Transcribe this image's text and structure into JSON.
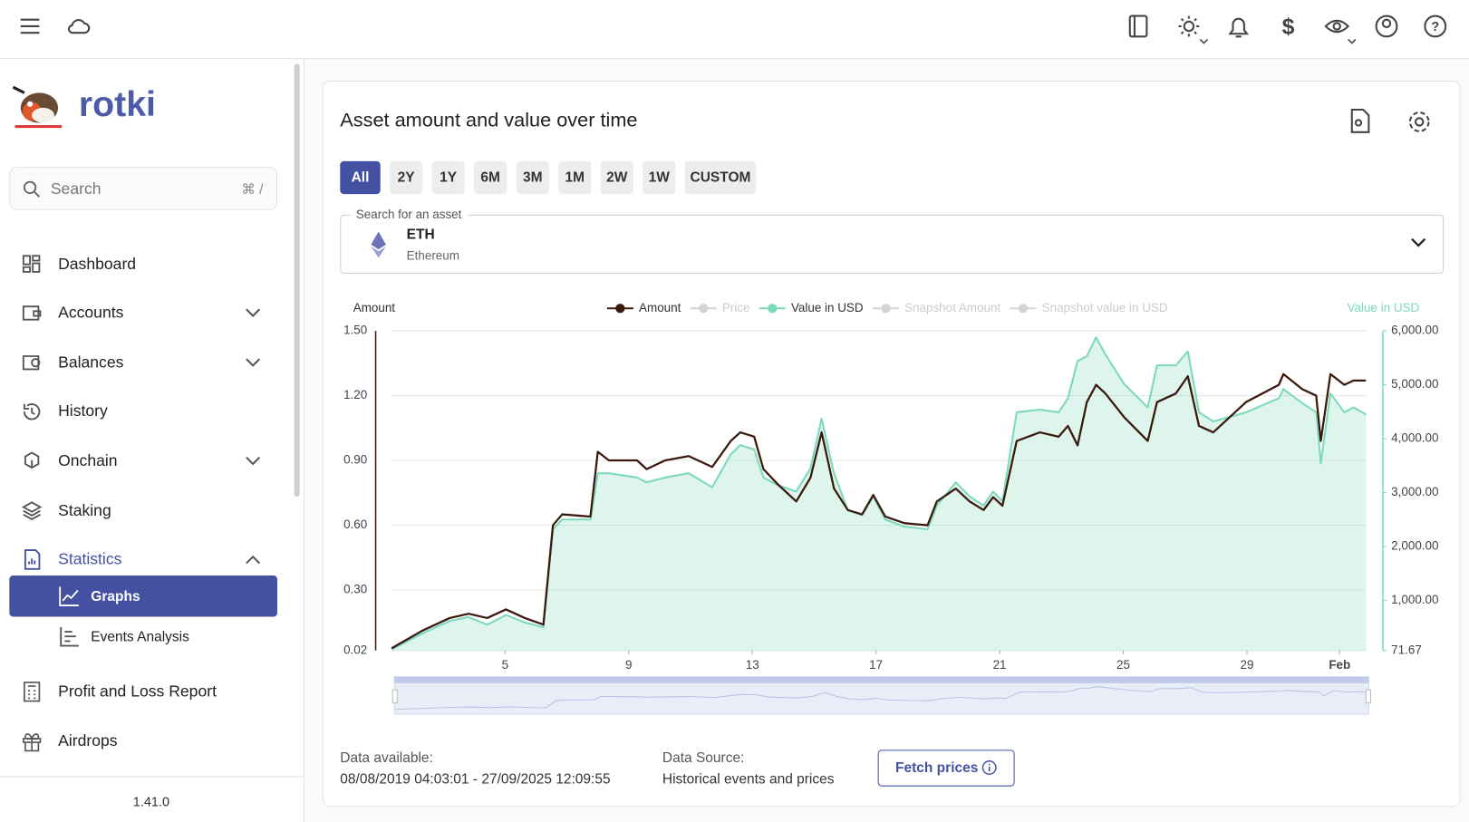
{
  "sidebar": {
    "brand": "rotki",
    "search_placeholder": "Search",
    "search_shortcut": "⌘ /",
    "nav": [
      "Dashboard",
      "Accounts",
      "Balances",
      "History",
      "Onchain",
      "Staking",
      "Statistics"
    ],
    "statistics_children": [
      "Graphs",
      "Events Analysis"
    ],
    "nav_after": [
      "Profit and Loss Report",
      "Airdrops"
    ],
    "version": "1.41.0"
  },
  "card": {
    "title": "Asset amount and value over time",
    "ranges": [
      "All",
      "2Y",
      "1Y",
      "6M",
      "3M",
      "1M",
      "2W",
      "1W",
      "CUSTOM"
    ],
    "asset_field_label": "Search for an asset",
    "asset_symbol": "ETH",
    "asset_name": "Ethereum",
    "data_available_label": "Data available:",
    "data_available": "08/08/2019 04:03:01 - 27/09/2025 12:09:55",
    "data_source_label": "Data Source:",
    "data_source": "Historical events and prices",
    "fetch_button": "Fetch prices"
  },
  "chart_data": {
    "type": "line",
    "ylabel": "Amount",
    "y2label": "Value in USD",
    "x": [
      1.33,
      2.3,
      3.21,
      3.82,
      4.42,
      5.03,
      5.64,
      6.24,
      6.55,
      6.85,
      7.76,
      8.0,
      8.36,
      9.27,
      9.58,
      10.18,
      10.94,
      11.7,
      12.3,
      12.61,
      13.06,
      13.36,
      13.82,
      14.42,
      14.88,
      15.24,
      15.64,
      16.09,
      16.55,
      16.91,
      17.3,
      17.91,
      18.67,
      18.97,
      19.58,
      20.03,
      20.48,
      20.79,
      21.09,
      21.55,
      22.3,
      22.91,
      23.21,
      23.52,
      23.82,
      24.12,
      24.42,
      25.03,
      25.79,
      26.09,
      26.7,
      27.09,
      27.45,
      27.91,
      28.97,
      30.03,
      30.18,
      30.79,
      31.24,
      31.39,
      31.7,
      32.15,
      32.45,
      32.85
    ],
    "xlim": [
      1.33,
      32.85
    ],
    "xticks": [
      5,
      9,
      13,
      17,
      21,
      25,
      29,
      {
        "value": 32,
        "label": "Feb"
      }
    ],
    "ylim": [
      0.02,
      1.5
    ],
    "yticks": [
      0.02,
      {
        "value": 0.3,
        "label": "0.30"
      },
      {
        "value": 0.6,
        "label": "0.60"
      },
      {
        "value": 0.9,
        "label": "0.90"
      },
      {
        "value": 1.2,
        "label": "1.20"
      },
      {
        "value": 1.5,
        "label": "1.50"
      }
    ],
    "y2lim": [
      71.67,
      6000
    ],
    "y2ticks": [
      71.67,
      {
        "value": 1000,
        "label": "1,000.00"
      },
      {
        "value": 2000,
        "label": "2,000.00"
      },
      {
        "value": 3000,
        "label": "3,000.00"
      },
      {
        "value": 4000,
        "label": "4,000.00"
      },
      {
        "value": 5000,
        "label": "5,000.00"
      },
      {
        "value": 6000,
        "label": "6,000.00"
      }
    ],
    "grid": true,
    "series": [
      {
        "name": "Amount",
        "color": "#3b1a0e",
        "values": [
          0.03,
          0.11,
          0.17,
          0.19,
          0.17,
          0.21,
          0.17,
          0.14,
          0.6,
          0.65,
          0.64,
          0.94,
          0.9,
          0.9,
          0.86,
          0.9,
          0.92,
          0.87,
          0.99,
          1.03,
          1.01,
          0.86,
          0.79,
          0.71,
          0.82,
          1.03,
          0.77,
          0.67,
          0.65,
          0.74,
          0.64,
          0.61,
          0.6,
          0.71,
          0.77,
          0.71,
          0.67,
          0.73,
          0.69,
          0.99,
          1.03,
          1.01,
          1.06,
          0.97,
          1.17,
          1.25,
          1.21,
          1.1,
          0.99,
          1.17,
          1.21,
          1.29,
          1.06,
          1.03,
          1.17,
          1.25,
          1.3,
          1.23,
          1.2,
          0.99,
          1.3,
          1.25,
          1.27,
          1.27
        ]
      },
      {
        "name": "Price",
        "color": "#d4d4d4",
        "hidden": true,
        "axis": "y2",
        "values": [
          null,
          null,
          null,
          null,
          null,
          null,
          null,
          null,
          null,
          null,
          null,
          null,
          null,
          null,
          null,
          null,
          null,
          null,
          null,
          null,
          null,
          null,
          null,
          null,
          null,
          null,
          null,
          null,
          null,
          null,
          null,
          null,
          null,
          null,
          null,
          null,
          null,
          null,
          null,
          null,
          null,
          null,
          null,
          null,
          null,
          null,
          null,
          null,
          null,
          null,
          null,
          null,
          null,
          null,
          null,
          null,
          null,
          null,
          null,
          null,
          null,
          null,
          null,
          null
        ]
      },
      {
        "name": "Value in USD",
        "color": "#7dd9bd",
        "axis": "y2",
        "area": true,
        "values": [
          90,
          380,
          620,
          690,
          550,
          730,
          590,
          500,
          2320,
          2500,
          2500,
          3360,
          3360,
          3280,
          3190,
          3280,
          3360,
          3100,
          3710,
          3880,
          3800,
          3280,
          3140,
          3020,
          3450,
          4370,
          3360,
          2670,
          2580,
          2930,
          2500,
          2370,
          2320,
          2760,
          3190,
          2930,
          2760,
          3020,
          2840,
          4490,
          4540,
          4490,
          4750,
          5440,
          5530,
          5880,
          5560,
          5010,
          4580,
          5360,
          5360,
          5620,
          4490,
          4320,
          4490,
          4750,
          4920,
          4660,
          4490,
          3540,
          4840,
          4490,
          4580,
          4450
        ]
      },
      {
        "name": "Snapshot Amount",
        "color": "#d4d4d4",
        "hidden": true,
        "values": [
          null,
          null,
          null,
          null,
          null,
          null,
          null,
          null,
          null,
          null,
          null,
          null,
          null,
          null,
          null,
          null,
          null,
          null,
          null,
          null,
          null,
          null,
          null,
          null,
          null,
          null,
          null,
          null,
          null,
          null,
          null,
          null,
          null,
          null,
          null,
          null,
          null,
          null,
          null,
          null,
          null,
          null,
          null,
          null,
          null,
          null,
          null,
          null,
          null,
          null,
          null,
          null,
          null,
          null,
          null,
          null,
          null,
          null,
          null,
          null,
          null,
          null,
          null,
          null
        ]
      },
      {
        "name": "Snapshot value in USD",
        "color": "#d4d4d4",
        "hidden": true,
        "axis": "y2",
        "values": [
          null,
          null,
          null,
          null,
          null,
          null,
          null,
          null,
          null,
          null,
          null,
          null,
          null,
          null,
          null,
          null,
          null,
          null,
          null,
          null,
          null,
          null,
          null,
          null,
          null,
          null,
          null,
          null,
          null,
          null,
          null,
          null,
          null,
          null,
          null,
          null,
          null,
          null,
          null,
          null,
          null,
          null,
          null,
          null,
          null,
          null,
          null,
          null,
          null,
          null,
          null,
          null,
          null,
          null,
          null,
          null,
          null,
          null,
          null,
          null,
          null,
          null,
          null,
          null
        ]
      }
    ]
  }
}
